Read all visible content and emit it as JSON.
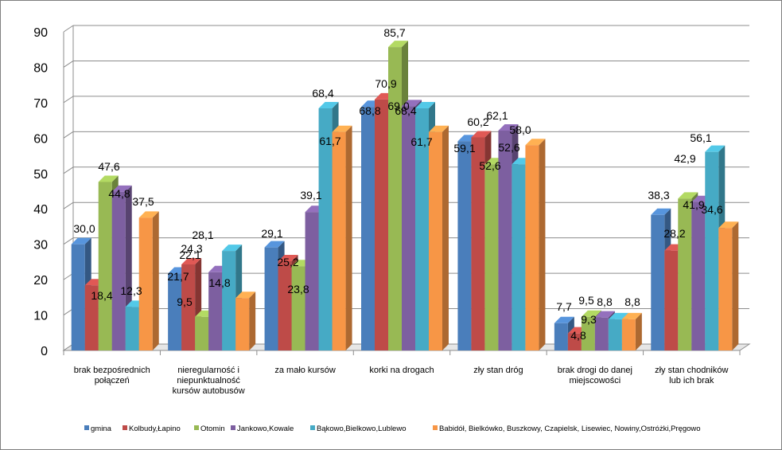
{
  "chart_data": {
    "type": "bar",
    "title": "",
    "xlabel": "",
    "ylabel": "",
    "ylim": [
      0,
      90
    ],
    "yticks": [
      0,
      10,
      20,
      30,
      40,
      50,
      60,
      70,
      80,
      90
    ],
    "grid": true,
    "legend": "bottom",
    "categories": [
      [
        "brak bezpośrednich",
        "połączeń"
      ],
      [
        "nieregularność i",
        "niepunktualność",
        "kursów autobusów"
      ],
      [
        "za mało kursów"
      ],
      [
        "korki na drogach"
      ],
      [
        "zły stan dróg"
      ],
      [
        "brak drogi do danej",
        "miejscowości"
      ],
      [
        "zły stan chodników",
        "lub ich brak"
      ]
    ],
    "series": [
      {
        "name": "gmina",
        "color": "#4a7ebb",
        "values": [
          30.0,
          21.7,
          29.1,
          68.8,
          59.1,
          7.7,
          38.3
        ],
        "labels": [
          "30,0",
          "21,7",
          "29,1",
          "68,8",
          "59,1",
          "7,7",
          "38,3"
        ]
      },
      {
        "name": "Kolbudy,Łapino",
        "color": "#be4b48",
        "values": [
          18.4,
          24.3,
          25.2,
          70.9,
          60.2,
          4.8,
          28.2
        ],
        "labels": [
          "18,4",
          "24,3",
          "25,2",
          "70,9",
          "60,2",
          "4,8",
          "28,2"
        ]
      },
      {
        "name": "Otomin",
        "color": "#98b954",
        "values": [
          47.6,
          9.5,
          23.8,
          85.7,
          52.6,
          9.5,
          42.9
        ],
        "labels": [
          "47,6",
          "9,5",
          "23,8",
          "85,7",
          "52,6",
          "9,5",
          "42,9"
        ]
      },
      {
        "name": "Jankowo,Kowale",
        "color": "#7d5fa0",
        "values": [
          44.8,
          22.1,
          39.1,
          69.0,
          62.1,
          9.3,
          41.9
        ],
        "labels": [
          "44,8",
          "22,1",
          "39,1",
          "69,0",
          "62,1",
          "9,3",
          "41,9"
        ]
      },
      {
        "name": "Bąkowo,Bielkowo,Lublewo",
        "color": "#46aac5",
        "values": [
          12.3,
          28.1,
          68.4,
          68.4,
          52.6,
          8.8,
          56.1
        ],
        "labels": [
          "12,3",
          "28,1",
          "68,4",
          "68,4",
          "52,6",
          "8,8",
          "56,1"
        ]
      },
      {
        "name": "Babidół, Bielkówko, Buszkowy, Czapielsk, Lisewiec, Nowiny,Ostróżki,Pręgowo",
        "color": "#f79646",
        "values": [
          37.5,
          14.8,
          61.7,
          61.7,
          58.0,
          8.8,
          34.6
        ],
        "labels": [
          "37,5",
          "14,8",
          "61,7",
          "61,7",
          "58,0",
          "8,8",
          "34,6"
        ]
      }
    ]
  }
}
